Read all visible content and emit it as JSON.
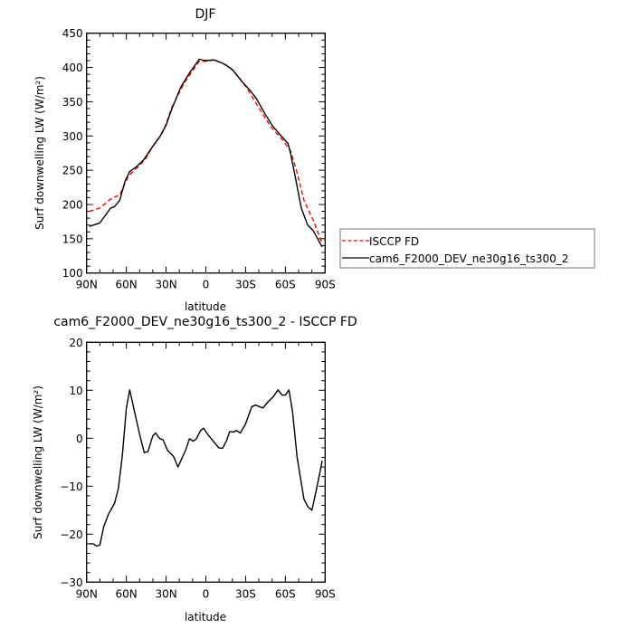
{
  "chart_data": [
    {
      "type": "line",
      "title": "DJF",
      "xlabel": "latitude",
      "ylabel": "Surf downwelling LW (W/m²)",
      "xlim": [
        90,
        -90
      ],
      "ylim": [
        100,
        450
      ],
      "xticks": [
        90,
        60,
        30,
        0,
        -30,
        -60,
        -90
      ],
      "xtick_labels": [
        "90N",
        "60N",
        "30N",
        "0",
        "30S",
        "60S",
        "90S"
      ],
      "yticks": [
        100,
        150,
        200,
        250,
        300,
        350,
        400,
        450
      ],
      "ytick_labels": [
        "100",
        "150",
        "200",
        "250",
        "300",
        "350",
        "400",
        "450"
      ],
      "grid": false,
      "legend_position": "right",
      "series": [
        {
          "name": "ISCCP FD",
          "color": "#ff0000",
          "dash": "dashed",
          "x": [
            88,
            80,
            71,
            65,
            58.6,
            51.8,
            46,
            40,
            32,
            25.6,
            16.5,
            5,
            0,
            -6.6,
            -17,
            -24,
            -30.6,
            -39.7,
            -48.8,
            -58,
            -64,
            -68.6,
            -74,
            -81,
            -87.7
          ],
          "y": [
            190,
            195,
            209,
            214,
            241,
            254,
            265,
            285,
            307,
            342,
            377,
            409,
            409,
            411,
            402,
            388,
            371,
            342,
            314,
            294,
            278,
            248,
            206,
            177,
            144
          ]
        },
        {
          "name": "cam6_F2000_DEV_ne30g16_ts300_2",
          "color": "#000000",
          "dash": "solid",
          "x": [
            88,
            80,
            72,
            69,
            65,
            61,
            57.5,
            53,
            47,
            40,
            35,
            30,
            25.6,
            19,
            12,
            5,
            0.6,
            -6,
            -13,
            -20,
            -27,
            -33.6,
            -38,
            -45,
            -50.6,
            -56,
            -62,
            -64,
            -67.6,
            -72,
            -76.8,
            -81,
            -87.7
          ],
          "y": [
            168,
            173,
            194.6,
            197,
            206,
            234,
            248,
            254,
            265,
            285,
            298,
            316,
            340,
            371,
            393,
            412,
            410,
            411,
            406,
            397,
            380,
            366,
            355,
            331,
            314,
            302,
            289,
            274,
            239,
            195,
            170,
            162,
            138
          ]
        }
      ]
    },
    {
      "type": "line",
      "title": "cam6_F2000_DEV_ne30g16_ts300_2 - ISCCP FD",
      "xlabel": "latitude",
      "ylabel": "Surf downwelling LW (W/m²)",
      "xlim": [
        90,
        -90
      ],
      "ylim": [
        -30,
        20
      ],
      "xticks": [
        90,
        60,
        30,
        0,
        -30,
        -60,
        -90
      ],
      "xtick_labels": [
        "90N",
        "60N",
        "30N",
        "0",
        "30S",
        "60S",
        "90S"
      ],
      "yticks": [
        -30,
        -20,
        -10,
        0,
        10,
        20
      ],
      "ytick_labels": [
        "−30",
        "−20",
        "−10",
        "0",
        "10",
        "20"
      ],
      "grid": false,
      "series": [
        {
          "color": "#000000",
          "dash": "solid",
          "x": [
            88,
            85,
            82.5,
            80,
            77,
            73.4,
            69,
            66,
            63,
            60,
            57.5,
            54,
            50,
            46.5,
            43.7,
            40,
            38,
            34.7,
            32.4,
            29,
            24.4,
            21,
            15,
            12.4,
            9.6,
            7,
            4,
            1.7,
            -1.7,
            -5,
            -9.7,
            -12.6,
            -15.8,
            -18,
            -21,
            -23,
            -26,
            -30,
            -34.7,
            -37.5,
            -43,
            -47,
            -51,
            -54.5,
            -57.4,
            -60,
            -62.7,
            -65.4,
            -68.8,
            -74,
            -77,
            -80,
            -83.6,
            -87.8
          ],
          "y": [
            -22,
            -22,
            -22.5,
            -22.3,
            -18.4,
            -15.8,
            -13.6,
            -10.5,
            -3.6,
            6.2,
            10.1,
            5.8,
            0.8,
            -3,
            -2.8,
            0.5,
            1.1,
            -0.1,
            -0.3,
            -2.5,
            -3.8,
            -6,
            -2.3,
            -0.1,
            -0.6,
            -0.1,
            1.6,
            2.1,
            0.7,
            -0.4,
            -2,
            -2.1,
            -0.4,
            1.4,
            1.3,
            1.6,
            1.1,
            3,
            6.6,
            6.9,
            6.3,
            7.6,
            8.7,
            10.1,
            9,
            9,
            10.1,
            5.5,
            -3.9,
            -12.7,
            -14.3,
            -15,
            -10.5,
            -4.7
          ]
        }
      ]
    }
  ]
}
